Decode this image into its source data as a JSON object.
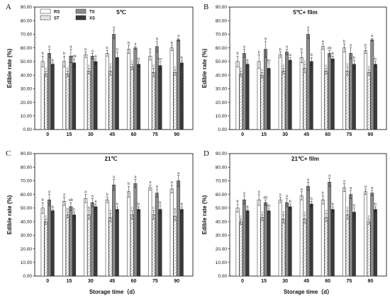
{
  "figure": {
    "legend": [
      "RS",
      "ST",
      "TS",
      "XS"
    ],
    "colors": {
      "RS": "#ffffff",
      "ST": "hatch",
      "TS": "#8c8c8c",
      "XS": "#3a3a3a"
    }
  },
  "chart_data": [
    {
      "type": "bar",
      "panel_label": "A",
      "title": "5℃",
      "xlabel": "",
      "ylabel": "Edible rate (%)",
      "ylim": [
        0,
        90
      ],
      "yticks": [
        "0.00",
        "10.00",
        "20.00",
        "30.00",
        "40.00",
        "50.00",
        "60.00",
        "70.00",
        "80.00",
        "90.00"
      ],
      "categories": [
        "0",
        "15",
        "30",
        "45",
        "60",
        "75",
        "90"
      ],
      "series": [
        {
          "name": "RS",
          "values": [
            50,
            50,
            55,
            56,
            59,
            54,
            60
          ],
          "errors": [
            4,
            4,
            2,
            2,
            3,
            3,
            2
          ],
          "labels": [
            "b",
            "b",
            "b",
            "b",
            "b",
            "b",
            "b"
          ]
        },
        {
          "name": "ST",
          "values": [
            41,
            41,
            43,
            43,
            46,
            42,
            42
          ],
          "errors": [
            2,
            2,
            2,
            3,
            2,
            3,
            2
          ],
          "labels": [
            "c",
            "c",
            "c",
            "c",
            "c",
            "c",
            "c"
          ]
        },
        {
          "name": "TS",
          "values": [
            56,
            54,
            54,
            70,
            60,
            61,
            66
          ],
          "errors": [
            3,
            5,
            2,
            3,
            1,
            4,
            1
          ],
          "labels": [
            "a",
            "a",
            "a",
            "a",
            "a",
            "a",
            "a"
          ]
        },
        {
          "name": "XS",
          "values": [
            48,
            49,
            50,
            53,
            48,
            47,
            49
          ],
          "errors": [
            1,
            3,
            2,
            4,
            2,
            3,
            2
          ],
          "labels": [
            "b",
            "ab",
            "a",
            "b",
            "b",
            "bc",
            "b"
          ]
        }
      ]
    },
    {
      "type": "bar",
      "panel_label": "B",
      "title": "5℃+ film",
      "xlabel": "",
      "ylabel": "Edible rate (%)",
      "ylim": [
        0,
        90
      ],
      "yticks": [
        "0.00",
        "10.00",
        "20.00",
        "30.00",
        "40.00",
        "50.00",
        "60.00",
        "70.00",
        "80.00",
        "90.00"
      ],
      "categories": [
        "0",
        "15",
        "30",
        "45",
        "60",
        "75",
        "90"
      ],
      "series": [
        {
          "name": "RS",
          "values": [
            50,
            50,
            55,
            53,
            61,
            60,
            58
          ],
          "errors": [
            4,
            5,
            2,
            4,
            2,
            3,
            2
          ],
          "labels": [
            "b",
            "b",
            "b",
            "b",
            "a",
            "b",
            "b"
          ]
        },
        {
          "name": "ST",
          "values": [
            41,
            40,
            43,
            45,
            43,
            43,
            42
          ],
          "errors": [
            2,
            2,
            2,
            3,
            2,
            3,
            2
          ],
          "labels": [
            "c",
            "c",
            "c",
            "c",
            "c",
            "c",
            "c"
          ]
        },
        {
          "name": "TS",
          "values": [
            56,
            59,
            57,
            70,
            56,
            56,
            66
          ],
          "errors": [
            3,
            6,
            2,
            3,
            2,
            4,
            1
          ],
          "labels": [
            "a",
            "a",
            "a",
            "a",
            "ab",
            "a",
            "a"
          ]
        },
        {
          "name": "XS",
          "values": [
            48,
            45,
            51,
            50,
            52,
            48,
            48
          ],
          "errors": [
            1,
            4,
            2,
            3,
            2,
            3,
            2
          ],
          "labels": [
            "b",
            "bc",
            "a",
            "b",
            "b",
            "b",
            "b"
          ]
        }
      ]
    },
    {
      "type": "bar",
      "panel_label": "C",
      "title": "21℃",
      "xlabel": "Storage time（d）",
      "ylabel": "Edible rate (%)",
      "ylim": [
        0,
        90
      ],
      "yticks": [
        "0.00",
        "10.00",
        "20.00",
        "30.00",
        "40.00",
        "50.00",
        "60.00",
        "70.00",
        "80.00",
        "90.00"
      ],
      "categories": [
        "0",
        "15",
        "30",
        "45",
        "60",
        "75",
        "90"
      ],
      "series": [
        {
          "name": "RS",
          "values": [
            50,
            55,
            57,
            56,
            62,
            65,
            64
          ],
          "errors": [
            4,
            3,
            3,
            2,
            4,
            2,
            3
          ],
          "labels": [
            "b",
            "a",
            "a",
            "b",
            "b",
            "a",
            "a"
          ]
        },
        {
          "name": "ST",
          "values": [
            40,
            45,
            45,
            43,
            45,
            45,
            44
          ],
          "errors": [
            2,
            2,
            3,
            3,
            3,
            3,
            3
          ],
          "labels": [
            "c",
            "b",
            "b",
            "c",
            "c",
            "c",
            "b"
          ]
        },
        {
          "name": "TS",
          "values": [
            56,
            51,
            54,
            67,
            68,
            61,
            70
          ],
          "errors": [
            4,
            3,
            3,
            4,
            3,
            3,
            4
          ],
          "labels": [
            "a",
            "ab",
            "a",
            "a",
            "a",
            "a",
            "a"
          ]
        },
        {
          "name": "XS",
          "values": [
            48,
            45,
            51,
            49,
            49,
            49,
            49
          ],
          "errors": [
            1,
            2,
            2,
            2,
            2,
            3,
            2
          ],
          "labels": [
            "b",
            "b",
            "a",
            "b",
            "b",
            "b",
            "b"
          ]
        }
      ]
    },
    {
      "type": "bar",
      "panel_label": "D",
      "title": "21℃+ film",
      "xlabel": "Storage time（d）",
      "ylabel": "Edible rate (%)",
      "ylim": [
        0,
        90
      ],
      "yticks": [
        "0.00",
        "10.00",
        "20.00",
        "30.00",
        "40.00",
        "50.00",
        "60.00",
        "70.00",
        "80.00",
        "90.00"
      ],
      "categories": [
        "0",
        "15",
        "30",
        "45",
        "60",
        "75",
        "90"
      ],
      "series": [
        {
          "name": "RS",
          "values": [
            50,
            56,
            56,
            59,
            56,
            65,
            62
          ],
          "errors": [
            3,
            4,
            2,
            3,
            3,
            3,
            2
          ],
          "labels": [
            "b",
            "a",
            "a",
            "a",
            "b",
            "a",
            "a"
          ]
        },
        {
          "name": "ST",
          "values": [
            40,
            43,
            42,
            42,
            43,
            45,
            40
          ],
          "errors": [
            2,
            2,
            3,
            3,
            3,
            3,
            2
          ],
          "labels": [
            "c",
            "c",
            "c",
            "c",
            "c",
            "c",
            "c"
          ]
        },
        {
          "name": "TS",
          "values": [
            56,
            54,
            54,
            66,
            69,
            60,
            61
          ],
          "errors": [
            3,
            2,
            3,
            3,
            3,
            3,
            2
          ],
          "labels": [
            "a",
            "ab",
            "a",
            "a",
            "a",
            "a",
            "a"
          ]
        },
        {
          "name": "XS",
          "values": [
            48,
            48,
            51,
            53,
            49,
            47,
            49
          ],
          "errors": [
            1,
            2,
            2,
            2,
            2,
            3,
            2
          ],
          "labels": [
            "b",
            "bc",
            "b",
            "b",
            "b",
            "b",
            "b"
          ]
        }
      ]
    }
  ]
}
